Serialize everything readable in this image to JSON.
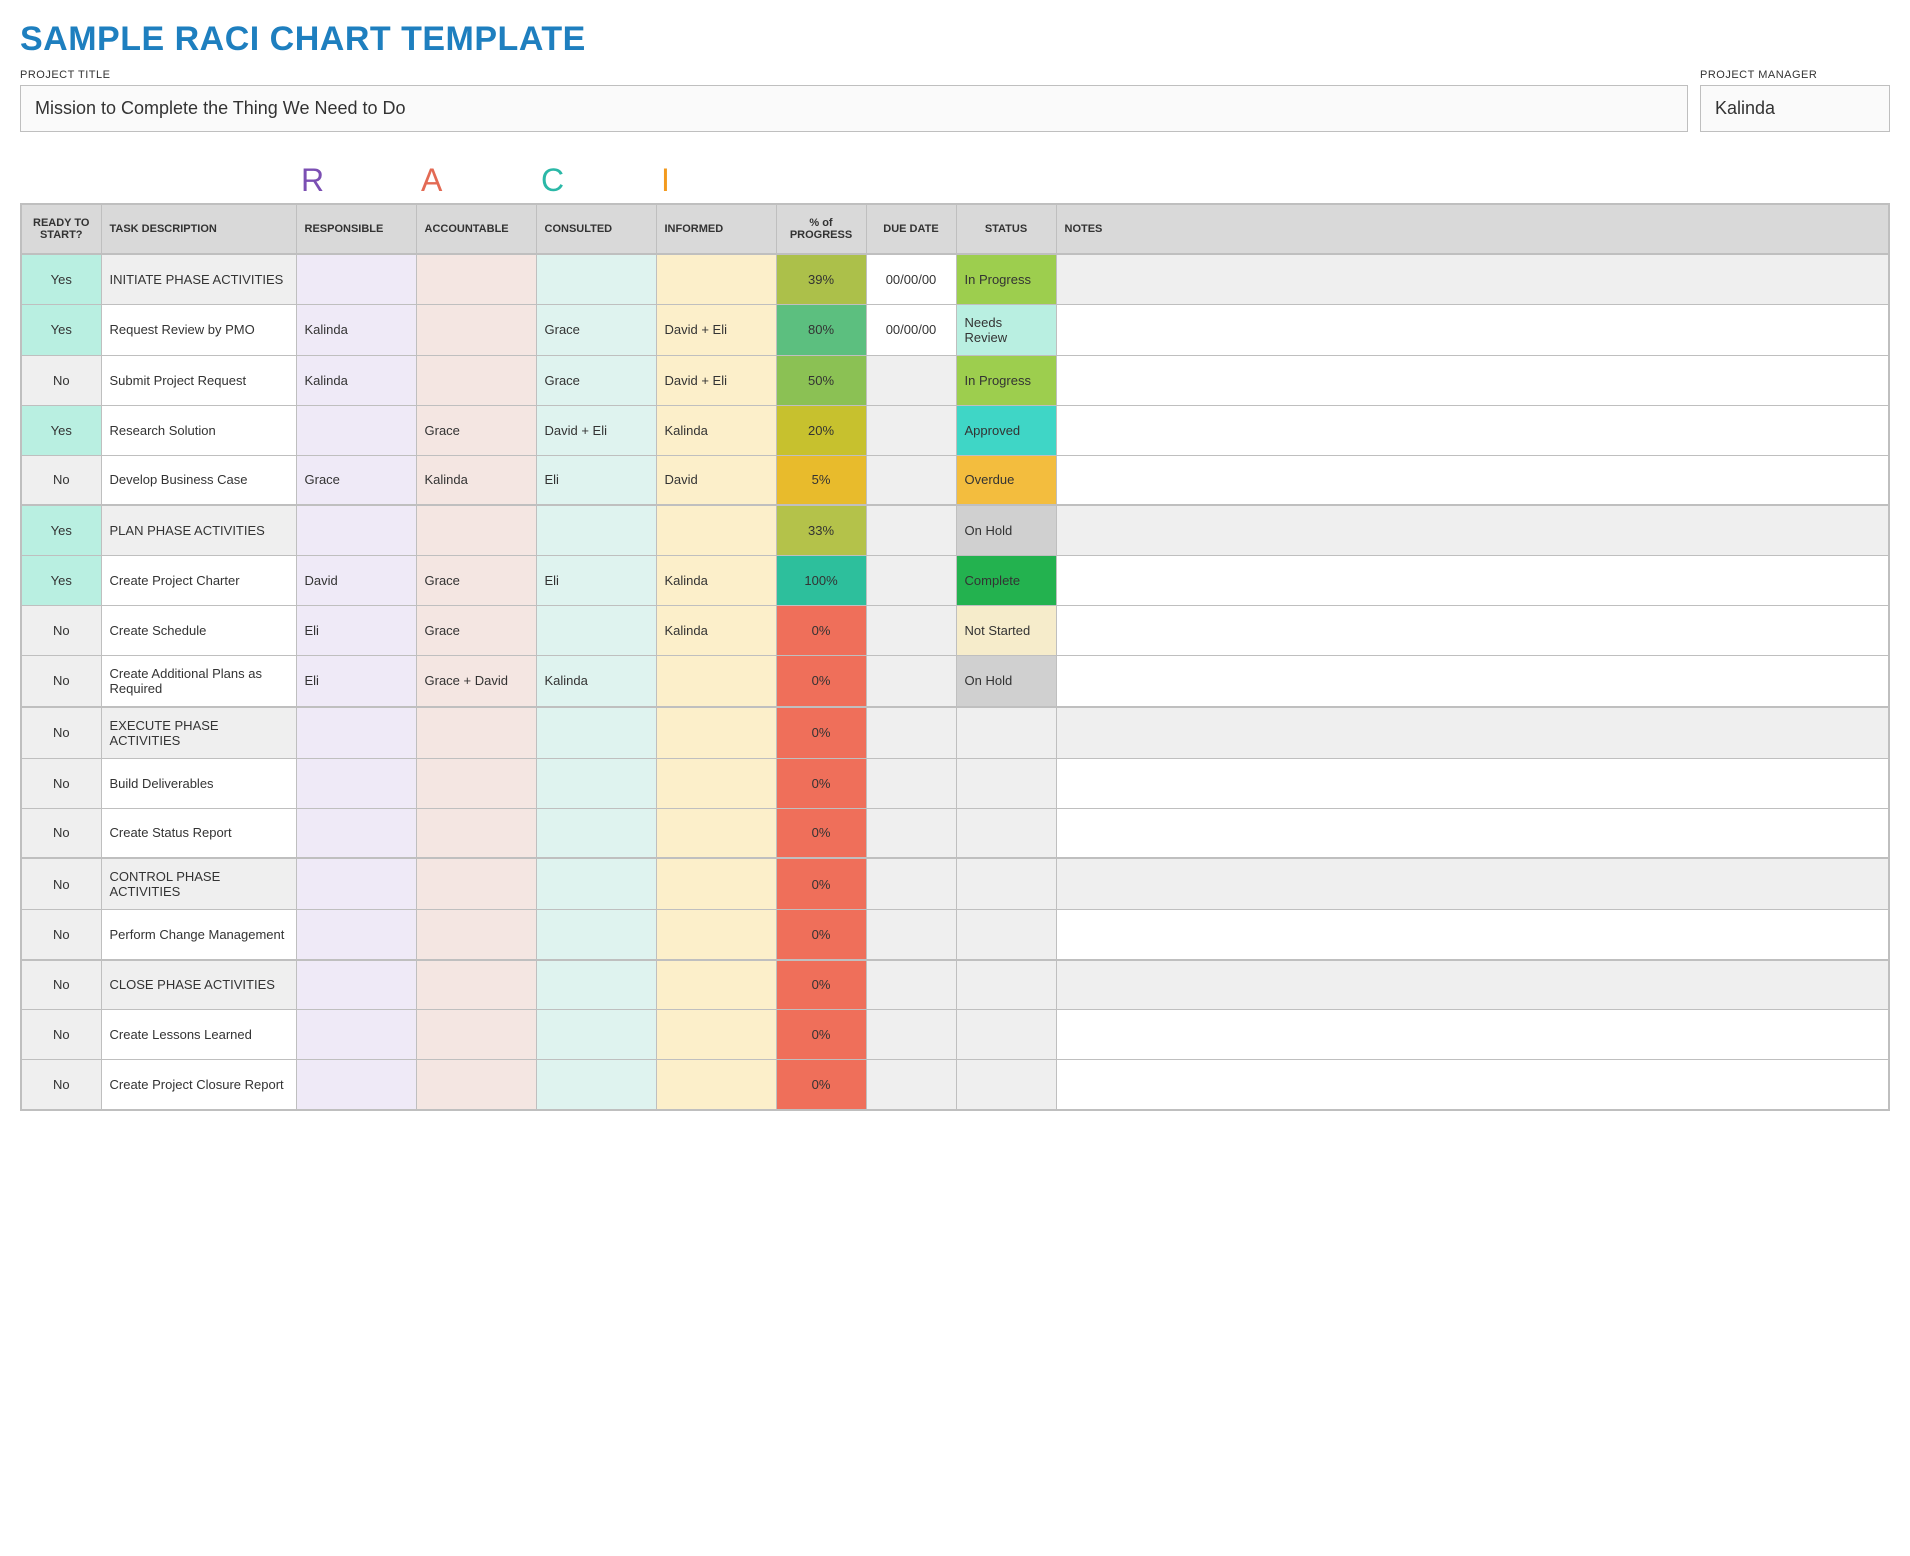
{
  "title": "SAMPLE RACI CHART TEMPLATE",
  "title_color": "#1e7fbf",
  "meta": {
    "project_title_label": "PROJECT TITLE",
    "project_title": "Mission to Complete the Thing We Need to Do",
    "project_manager_label": "PROJECT MANAGER",
    "project_manager": "Kalinda"
  },
  "raci_banner": {
    "R": {
      "letter": "R",
      "color": "#7b4fb3"
    },
    "A": {
      "letter": "A",
      "color": "#e36a54"
    },
    "C": {
      "letter": "C",
      "color": "#2bb8a7"
    },
    "I": {
      "letter": "I",
      "color": "#f39a1e"
    }
  },
  "columns": {
    "ready": "READY TO START?",
    "task": "TASK DESCRIPTION",
    "r": "RESPONSIBLE",
    "a": "ACCOUNTABLE",
    "c": "CONSULTED",
    "i": "INFORMED",
    "pct": "% of PROGRESS",
    "due": "DUE DATE",
    "status": "STATUS",
    "notes": "NOTES"
  },
  "column_header_bg": {
    "default": "#d9d9d9",
    "r": "#e4ddf0",
    "a": "#eadbd7",
    "c": "#c5ece5",
    "i": "#f6b200"
  },
  "ready_colors": {
    "Yes": "#b9efe1",
    "No": "#efefef"
  },
  "raci_cell_bg": {
    "r": "#efeaf7",
    "a": "#f4e6e2",
    "c": "#dff3ef",
    "i": "#fcefca"
  },
  "default_cell_bg": {
    "due": "#efefef",
    "notes_phase": "#efefef",
    "notes_task": "#ffffff"
  },
  "progress_color_map": {
    "0": "#ef6f5a",
    "5": "#e8bb2c",
    "20": "#c7c12e",
    "33": "#b4c24a",
    "39": "#acc04a",
    "50": "#8bc154",
    "80": "#5cbf7f",
    "100": "#2dbf9c"
  },
  "status_color_map": {
    "In Progress": "#9dce4e",
    "Needs Review": "#b9efe1",
    "Approved": "#3fd6c6",
    "Overdue": "#f3bd3e",
    "On Hold": "#d0d0d0",
    "Complete": "#23b24f",
    "Not Started": "#f6eccb",
    "": "#efefef"
  },
  "phases": [
    {
      "header": {
        "ready": "Yes",
        "task": "INITIATE PHASE ACTIVITIES",
        "r": "",
        "a": "",
        "c": "",
        "i": "",
        "pct": "39%",
        "pct_key": "39",
        "due": "00/00/00",
        "status": "In Progress",
        "notes": ""
      },
      "rows": [
        {
          "ready": "Yes",
          "task": "Request Review by PMO",
          "r": "Kalinda",
          "a": "",
          "c": "Grace",
          "i": "David + Eli",
          "pct": "80%",
          "pct_key": "80",
          "due": "00/00/00",
          "status": "Needs Review",
          "notes": ""
        },
        {
          "ready": "No",
          "task": "Submit Project Request",
          "r": "Kalinda",
          "a": "",
          "c": "Grace",
          "i": "David + Eli",
          "pct": "50%",
          "pct_key": "50",
          "due": "",
          "status": "In Progress",
          "notes": ""
        },
        {
          "ready": "Yes",
          "task": "Research Solution",
          "r": "",
          "a": "Grace",
          "c": "David + Eli",
          "i": "Kalinda",
          "pct": "20%",
          "pct_key": "20",
          "due": "",
          "status": "Approved",
          "notes": ""
        },
        {
          "ready": "No",
          "task": "Develop Business Case",
          "r": "Grace",
          "a": "Kalinda",
          "c": "Eli",
          "i": "David",
          "pct": "5%",
          "pct_key": "5",
          "due": "",
          "status": "Overdue",
          "notes": ""
        }
      ]
    },
    {
      "header": {
        "ready": "Yes",
        "task": "PLAN PHASE ACTIVITIES",
        "r": "",
        "a": "",
        "c": "",
        "i": "",
        "pct": "33%",
        "pct_key": "33",
        "due": "",
        "status": "On Hold",
        "notes": ""
      },
      "rows": [
        {
          "ready": "Yes",
          "task": "Create Project Charter",
          "r": "David",
          "a": "Grace",
          "c": "Eli",
          "i": "Kalinda",
          "pct": "100%",
          "pct_key": "100",
          "due": "",
          "status": "Complete",
          "notes": ""
        },
        {
          "ready": "No",
          "task": "Create Schedule",
          "r": "Eli",
          "a": "Grace",
          "c": "",
          "i": "Kalinda",
          "pct": "0%",
          "pct_key": "0",
          "due": "",
          "status": "Not Started",
          "notes": ""
        },
        {
          "ready": "No",
          "task": "Create Additional Plans as Required",
          "r": "Eli",
          "a": "Grace + David",
          "c": "Kalinda",
          "i": "",
          "pct": "0%",
          "pct_key": "0",
          "due": "",
          "status": "On Hold",
          "notes": ""
        }
      ]
    },
    {
      "header": {
        "ready": "No",
        "task": "EXECUTE PHASE ACTIVITIES",
        "r": "",
        "a": "",
        "c": "",
        "i": "",
        "pct": "0%",
        "pct_key": "0",
        "due": "",
        "status": "",
        "notes": ""
      },
      "rows": [
        {
          "ready": "No",
          "task": "Build Deliverables",
          "r": "",
          "a": "",
          "c": "",
          "i": "",
          "pct": "0%",
          "pct_key": "0",
          "due": "",
          "status": "",
          "notes": ""
        },
        {
          "ready": "No",
          "task": "Create Status Report",
          "r": "",
          "a": "",
          "c": "",
          "i": "",
          "pct": "0%",
          "pct_key": "0",
          "due": "",
          "status": "",
          "notes": ""
        }
      ]
    },
    {
      "header": {
        "ready": "No",
        "task": "CONTROL PHASE ACTIVITIES",
        "r": "",
        "a": "",
        "c": "",
        "i": "",
        "pct": "0%",
        "pct_key": "0",
        "due": "",
        "status": "",
        "notes": ""
      },
      "rows": [
        {
          "ready": "No",
          "task": "Perform Change Management",
          "r": "",
          "a": "",
          "c": "",
          "i": "",
          "pct": "0%",
          "pct_key": "0",
          "due": "",
          "status": "",
          "notes": ""
        }
      ]
    },
    {
      "header": {
        "ready": "No",
        "task": "CLOSE PHASE ACTIVITIES",
        "r": "",
        "a": "",
        "c": "",
        "i": "",
        "pct": "0%",
        "pct_key": "0",
        "due": "",
        "status": "",
        "notes": ""
      },
      "rows": [
        {
          "ready": "No",
          "task": "Create Lessons Learned",
          "r": "",
          "a": "",
          "c": "",
          "i": "",
          "pct": "0%",
          "pct_key": "0",
          "due": "",
          "status": "",
          "notes": ""
        },
        {
          "ready": "No",
          "task": "Create Project Closure Report",
          "r": "",
          "a": "",
          "c": "",
          "i": "",
          "pct": "0%",
          "pct_key": "0",
          "due": "",
          "status": "",
          "notes": ""
        }
      ]
    }
  ]
}
